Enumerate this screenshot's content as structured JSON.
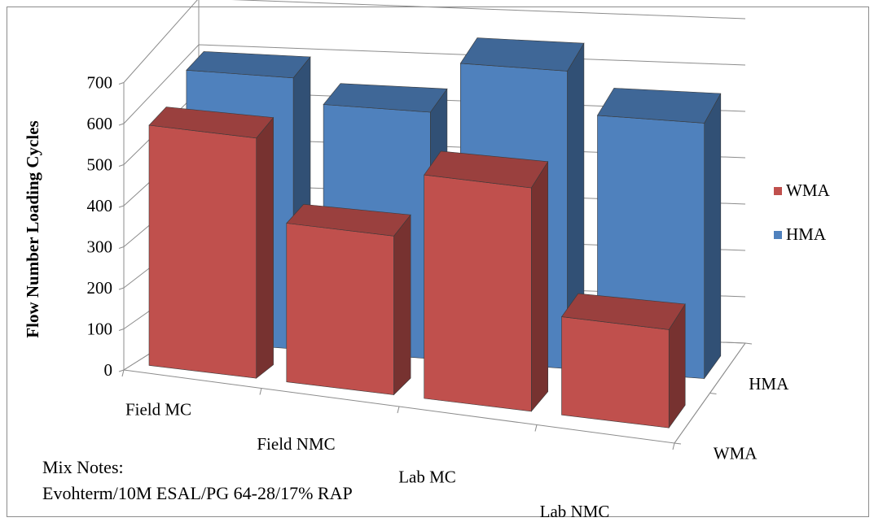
{
  "chart_data": {
    "type": "bar",
    "subtype": "3d-column",
    "categories": [
      "Field MC",
      "Field NMC",
      "Lab MC",
      "Lab NMC"
    ],
    "series": [
      {
        "name": "WMA",
        "values": [
          575,
          380,
          535,
          235
        ],
        "color": "#c0504d"
      },
      {
        "name": "HMA",
        "values": [
          610,
          555,
          670,
          575
        ],
        "color": "#4f81bd"
      }
    ],
    "depth_labels": [
      "HMA",
      "WMA"
    ],
    "ylabel": "Flow Number Loading Cycles",
    "ylim": [
      0,
      700
    ],
    "yticks": [
      0,
      100,
      200,
      300,
      400,
      500,
      600,
      700
    ],
    "legend": [
      "WMA",
      "HMA"
    ],
    "legend_position": "right",
    "grid": true
  },
  "notes": {
    "title": "Mix Notes:",
    "text": "Evohterm/10M ESAL/PG 64-28/17% RAP"
  }
}
